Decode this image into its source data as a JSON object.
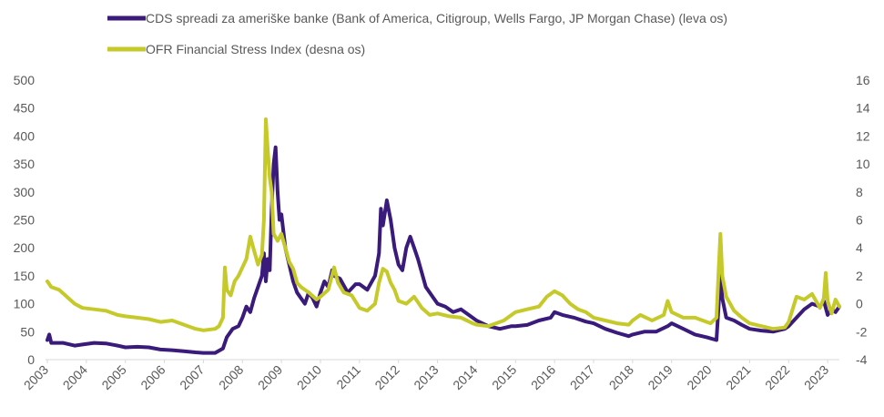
{
  "chart_data": {
    "type": "line",
    "title": "",
    "xlabel": "",
    "ylabel": "",
    "legend_position": "top",
    "grid": false,
    "x_categories": [
      "2003",
      "2004",
      "2005",
      "2006",
      "2007",
      "2008",
      "2009",
      "2010",
      "2011",
      "2012",
      "2013",
      "2014",
      "2015",
      "2016",
      "2017",
      "2018",
      "2019",
      "2020",
      "2021",
      "2022",
      "2023"
    ],
    "y_left": {
      "min": 0,
      "max": 500,
      "ticks": [
        "0",
        "50",
        "100",
        "150",
        "200",
        "250",
        "300",
        "350",
        "400",
        "450",
        "500"
      ]
    },
    "y_right": {
      "min": -4,
      "max": 16,
      "ticks": [
        "-4",
        "-2",
        "0",
        "2",
        "4",
        "6",
        "8",
        "10",
        "12",
        "14",
        "16"
      ]
    },
    "series": [
      {
        "name": "CDS spreadi za ameriške banke (Bank of America, Citigroup, Wells Fargo, JP Morgan Chase) (leva os)",
        "axis": "left",
        "color": "#3a1a7a",
        "points": [
          [
            2003.0,
            35
          ],
          [
            2003.05,
            45
          ],
          [
            2003.1,
            30
          ],
          [
            2003.4,
            30
          ],
          [
            2003.7,
            25
          ],
          [
            2003.9,
            27
          ],
          [
            2004.2,
            30
          ],
          [
            2004.5,
            29
          ],
          [
            2004.8,
            25
          ],
          [
            2005.0,
            22
          ],
          [
            2005.3,
            23
          ],
          [
            2005.6,
            22
          ],
          [
            2005.9,
            18
          ],
          [
            2006.2,
            17
          ],
          [
            2006.5,
            15
          ],
          [
            2006.8,
            13
          ],
          [
            2007.0,
            12
          ],
          [
            2007.3,
            12
          ],
          [
            2007.5,
            20
          ],
          [
            2007.6,
            40
          ],
          [
            2007.75,
            55
          ],
          [
            2007.9,
            60
          ],
          [
            2008.0,
            75
          ],
          [
            2008.1,
            95
          ],
          [
            2008.2,
            85
          ],
          [
            2008.3,
            110
          ],
          [
            2008.4,
            130
          ],
          [
            2008.5,
            150
          ],
          [
            2008.55,
            190
          ],
          [
            2008.6,
            140
          ],
          [
            2008.65,
            180
          ],
          [
            2008.7,
            160
          ],
          [
            2008.75,
            270
          ],
          [
            2008.8,
            350
          ],
          [
            2008.85,
            380
          ],
          [
            2008.9,
            300
          ],
          [
            2008.95,
            250
          ],
          [
            2009.0,
            260
          ],
          [
            2009.1,
            200
          ],
          [
            2009.2,
            170
          ],
          [
            2009.3,
            140
          ],
          [
            2009.4,
            120
          ],
          [
            2009.5,
            110
          ],
          [
            2009.6,
            100
          ],
          [
            2009.7,
            120
          ],
          [
            2009.8,
            110
          ],
          [
            2009.9,
            95
          ],
          [
            2010.0,
            120
          ],
          [
            2010.1,
            140
          ],
          [
            2010.2,
            130
          ],
          [
            2010.3,
            160
          ],
          [
            2010.35,
            150
          ],
          [
            2010.5,
            145
          ],
          [
            2010.7,
            120
          ],
          [
            2010.9,
            135
          ],
          [
            2011.0,
            135
          ],
          [
            2011.2,
            125
          ],
          [
            2011.4,
            150
          ],
          [
            2011.5,
            190
          ],
          [
            2011.55,
            270
          ],
          [
            2011.6,
            240
          ],
          [
            2011.7,
            285
          ],
          [
            2011.8,
            250
          ],
          [
            2011.9,
            200
          ],
          [
            2012.0,
            170
          ],
          [
            2012.1,
            160
          ],
          [
            2012.2,
            200
          ],
          [
            2012.3,
            220
          ],
          [
            2012.4,
            200
          ],
          [
            2012.5,
            180
          ],
          [
            2012.7,
            130
          ],
          [
            2012.9,
            110
          ],
          [
            2013.0,
            100
          ],
          [
            2013.2,
            95
          ],
          [
            2013.4,
            85
          ],
          [
            2013.6,
            90
          ],
          [
            2013.8,
            80
          ],
          [
            2014.0,
            70
          ],
          [
            2014.3,
            60
          ],
          [
            2014.6,
            55
          ],
          [
            2014.9,
            60
          ],
          [
            2015.0,
            60
          ],
          [
            2015.3,
            62
          ],
          [
            2015.6,
            70
          ],
          [
            2015.9,
            75
          ],
          [
            2016.0,
            85
          ],
          [
            2016.2,
            80
          ],
          [
            2016.5,
            75
          ],
          [
            2016.8,
            68
          ],
          [
            2017.0,
            65
          ],
          [
            2017.3,
            55
          ],
          [
            2017.6,
            48
          ],
          [
            2017.9,
            42
          ],
          [
            2018.0,
            45
          ],
          [
            2018.3,
            50
          ],
          [
            2018.6,
            50
          ],
          [
            2018.9,
            60
          ],
          [
            2019.0,
            65
          ],
          [
            2019.3,
            55
          ],
          [
            2019.6,
            45
          ],
          [
            2019.9,
            40
          ],
          [
            2020.0,
            38
          ],
          [
            2020.15,
            35
          ],
          [
            2020.2,
            90
          ],
          [
            2020.25,
            150
          ],
          [
            2020.3,
            110
          ],
          [
            2020.4,
            75
          ],
          [
            2020.6,
            70
          ],
          [
            2020.8,
            62
          ],
          [
            2021.0,
            55
          ],
          [
            2021.3,
            52
          ],
          [
            2021.6,
            50
          ],
          [
            2021.9,
            55
          ],
          [
            2022.0,
            60
          ],
          [
            2022.2,
            75
          ],
          [
            2022.4,
            90
          ],
          [
            2022.6,
            100
          ],
          [
            2022.8,
            95
          ],
          [
            2022.9,
            105
          ],
          [
            2023.0,
            80
          ],
          [
            2023.1,
            90
          ],
          [
            2023.2,
            85
          ],
          [
            2023.3,
            95
          ]
        ]
      },
      {
        "name": "OFR Financial Stress Index (desna os)",
        "axis": "right",
        "color": "#c5c92a",
        "points": [
          [
            2003.0,
            1.6
          ],
          [
            2003.1,
            1.2
          ],
          [
            2003.3,
            1.0
          ],
          [
            2003.5,
            0.5
          ],
          [
            2003.7,
            0.0
          ],
          [
            2003.9,
            -0.3
          ],
          [
            2004.2,
            -0.4
          ],
          [
            2004.5,
            -0.5
          ],
          [
            2004.8,
            -0.8
          ],
          [
            2005.0,
            -0.9
          ],
          [
            2005.3,
            -1.0
          ],
          [
            2005.6,
            -1.1
          ],
          [
            2005.9,
            -1.3
          ],
          [
            2006.2,
            -1.2
          ],
          [
            2006.5,
            -1.5
          ],
          [
            2006.8,
            -1.8
          ],
          [
            2007.0,
            -1.9
          ],
          [
            2007.3,
            -1.8
          ],
          [
            2007.4,
            -1.6
          ],
          [
            2007.5,
            -1.0
          ],
          [
            2007.55,
            2.6
          ],
          [
            2007.6,
            1.0
          ],
          [
            2007.7,
            0.6
          ],
          [
            2007.8,
            1.6
          ],
          [
            2007.9,
            2.0
          ],
          [
            2008.0,
            2.6
          ],
          [
            2008.1,
            3.2
          ],
          [
            2008.2,
            4.8
          ],
          [
            2008.3,
            3.8
          ],
          [
            2008.4,
            2.8
          ],
          [
            2008.5,
            3.5
          ],
          [
            2008.55,
            6.0
          ],
          [
            2008.6,
            13.2
          ],
          [
            2008.65,
            11.0
          ],
          [
            2008.7,
            9.0
          ],
          [
            2008.75,
            8.0
          ],
          [
            2008.8,
            5.0
          ],
          [
            2008.9,
            4.5
          ],
          [
            2009.0,
            5.0
          ],
          [
            2009.1,
            4.0
          ],
          [
            2009.2,
            3.0
          ],
          [
            2009.3,
            2.5
          ],
          [
            2009.4,
            1.5
          ],
          [
            2009.5,
            1.2
          ],
          [
            2009.7,
            0.8
          ],
          [
            2009.9,
            0.3
          ],
          [
            2010.0,
            0.5
          ],
          [
            2010.2,
            1.0
          ],
          [
            2010.35,
            2.6
          ],
          [
            2010.45,
            1.5
          ],
          [
            2010.6,
            0.8
          ],
          [
            2010.8,
            0.6
          ],
          [
            2011.0,
            -0.3
          ],
          [
            2011.2,
            -0.5
          ],
          [
            2011.4,
            0.0
          ],
          [
            2011.5,
            1.5
          ],
          [
            2011.6,
            2.5
          ],
          [
            2011.7,
            2.3
          ],
          [
            2011.8,
            1.5
          ],
          [
            2011.9,
            1.0
          ],
          [
            2012.0,
            0.2
          ],
          [
            2012.2,
            0.0
          ],
          [
            2012.4,
            0.5
          ],
          [
            2012.6,
            -0.3
          ],
          [
            2012.8,
            -0.8
          ],
          [
            2013.0,
            -0.7
          ],
          [
            2013.3,
            -0.9
          ],
          [
            2013.6,
            -1.0
          ],
          [
            2013.9,
            -1.4
          ],
          [
            2014.0,
            -1.5
          ],
          [
            2014.3,
            -1.6
          ],
          [
            2014.5,
            -1.4
          ],
          [
            2014.7,
            -1.2
          ],
          [
            2015.0,
            -0.6
          ],
          [
            2015.3,
            -0.4
          ],
          [
            2015.6,
            -0.2
          ],
          [
            2015.8,
            0.5
          ],
          [
            2016.0,
            0.9
          ],
          [
            2016.2,
            0.6
          ],
          [
            2016.4,
            0.0
          ],
          [
            2016.6,
            -0.4
          ],
          [
            2016.8,
            -0.6
          ],
          [
            2017.0,
            -1.0
          ],
          [
            2017.3,
            -1.2
          ],
          [
            2017.6,
            -1.4
          ],
          [
            2017.9,
            -1.5
          ],
          [
            2018.0,
            -1.2
          ],
          [
            2018.2,
            -0.8
          ],
          [
            2018.5,
            -1.2
          ],
          [
            2018.8,
            -0.8
          ],
          [
            2018.9,
            0.2
          ],
          [
            2019.0,
            -0.6
          ],
          [
            2019.3,
            -1.0
          ],
          [
            2019.6,
            -1.0
          ],
          [
            2019.9,
            -1.3
          ],
          [
            2020.0,
            -1.4
          ],
          [
            2020.15,
            -1.0
          ],
          [
            2020.2,
            2.0
          ],
          [
            2020.25,
            5.0
          ],
          [
            2020.3,
            2.0
          ],
          [
            2020.4,
            0.5
          ],
          [
            2020.6,
            -0.5
          ],
          [
            2020.8,
            -1.0
          ],
          [
            2021.0,
            -1.4
          ],
          [
            2021.3,
            -1.6
          ],
          [
            2021.6,
            -1.8
          ],
          [
            2021.9,
            -1.7
          ],
          [
            2022.0,
            -1.3
          ],
          [
            2022.2,
            0.5
          ],
          [
            2022.4,
            0.3
          ],
          [
            2022.6,
            0.7
          ],
          [
            2022.8,
            -0.3
          ],
          [
            2022.9,
            0.4
          ],
          [
            2022.95,
            2.2
          ],
          [
            2023.0,
            0.2
          ],
          [
            2023.1,
            -0.7
          ],
          [
            2023.2,
            0.3
          ],
          [
            2023.3,
            -0.2
          ]
        ]
      }
    ]
  }
}
